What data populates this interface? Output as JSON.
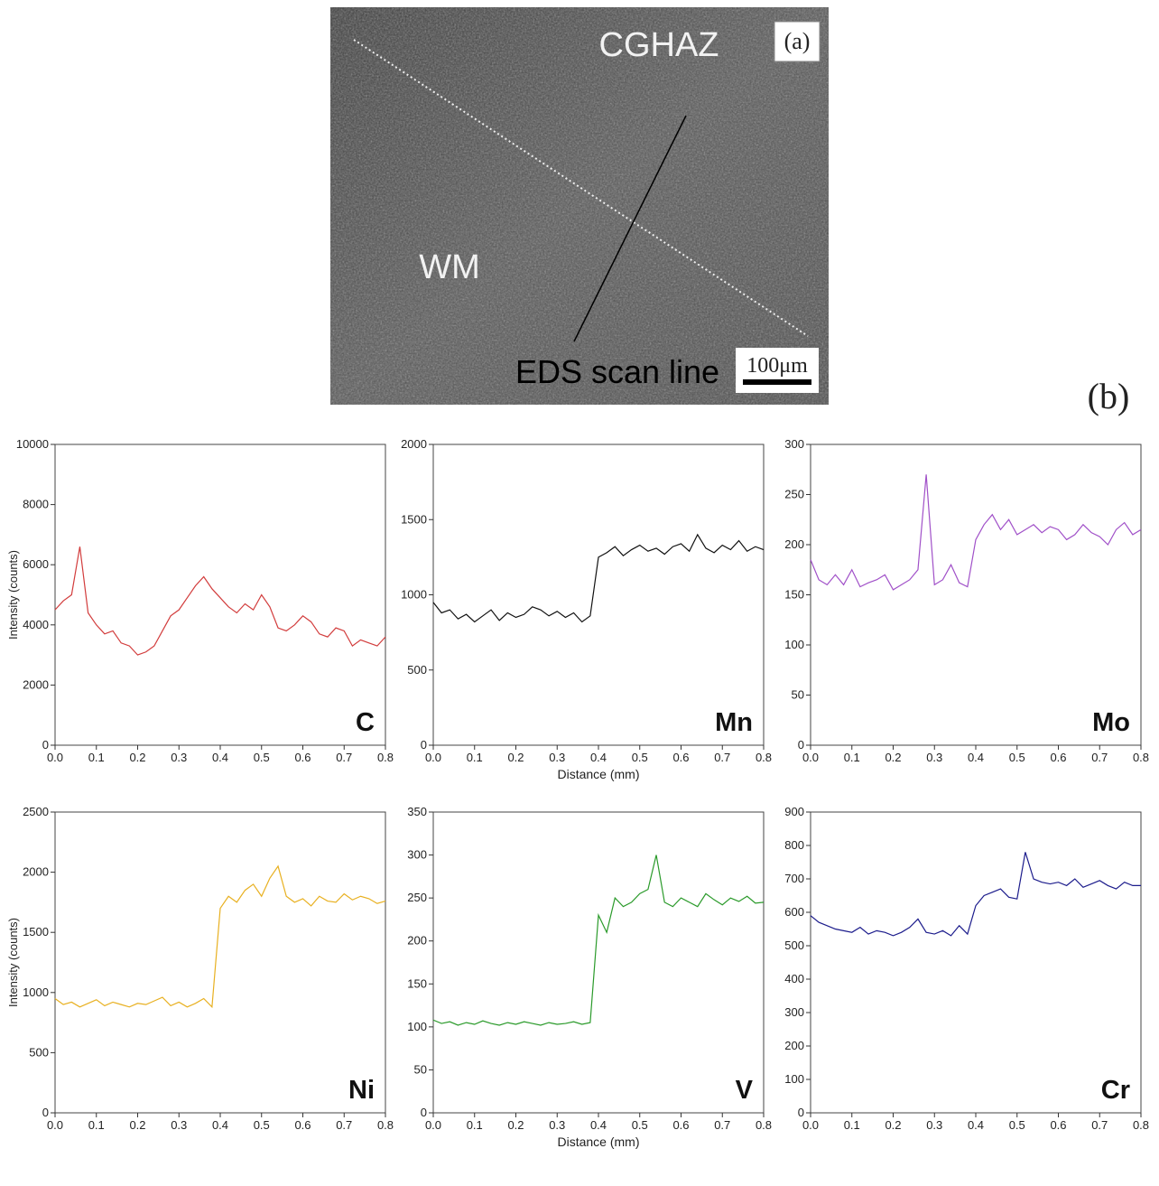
{
  "micrograph": {
    "panel_label": "(a)",
    "region_top": "CGHAZ",
    "region_left": "WM",
    "scan_label": "EDS scan line",
    "scale_bar": "100μm"
  },
  "panel_label_b": "(b)",
  "chart_data": [
    {
      "type": "line",
      "annotation": "C",
      "y_label": "Intensity (counts)",
      "x": [
        0,
        0.02,
        0.04,
        0.06,
        0.08,
        0.1,
        0.12,
        0.14,
        0.16,
        0.18,
        0.2,
        0.22,
        0.24,
        0.26,
        0.28,
        0.3,
        0.32,
        0.34,
        0.36,
        0.38,
        0.4,
        0.42,
        0.44,
        0.46,
        0.48,
        0.5,
        0.52,
        0.54,
        0.56,
        0.58,
        0.6,
        0.62,
        0.64,
        0.66,
        0.68,
        0.7,
        0.72,
        0.74,
        0.76,
        0.78,
        0.8
      ],
      "series": [
        {
          "color": "#d23c3c",
          "values": [
            4500,
            4800,
            5000,
            6600,
            4400,
            4000,
            3700,
            3800,
            3400,
            3300,
            3000,
            3100,
            3300,
            3800,
            4300,
            4500,
            4900,
            5300,
            5600,
            5200,
            4900,
            4600,
            4400,
            4700,
            4500,
            5000,
            4600,
            3900,
            3800,
            4000,
            4300,
            4100,
            3700,
            3600,
            3900,
            3800,
            3300,
            3500,
            3400,
            3300,
            3600
          ]
        }
      ],
      "xlim": [
        0,
        0.8
      ],
      "xticks": [
        {
          "value": 0,
          "label": "0.0"
        },
        0.1,
        0.2,
        0.3,
        0.4,
        0.5,
        0.6,
        0.7,
        0.8
      ],
      "ylim": [
        0,
        10000
      ],
      "yticks": [
        0,
        2000,
        4000,
        6000,
        8000,
        10000
      ]
    },
    {
      "type": "line",
      "annotation": "Mn",
      "x_label": "Distance (mm)",
      "x": [
        0,
        0.02,
        0.04,
        0.06,
        0.08,
        0.1,
        0.12,
        0.14,
        0.16,
        0.18,
        0.2,
        0.22,
        0.24,
        0.26,
        0.28,
        0.3,
        0.32,
        0.34,
        0.36,
        0.38,
        0.4,
        0.42,
        0.44,
        0.46,
        0.48,
        0.5,
        0.52,
        0.54,
        0.56,
        0.58,
        0.6,
        0.62,
        0.64,
        0.66,
        0.68,
        0.7,
        0.72,
        0.74,
        0.76,
        0.78,
        0.8
      ],
      "series": [
        {
          "color": "#111111",
          "values": [
            950,
            880,
            900,
            840,
            870,
            820,
            860,
            900,
            830,
            880,
            850,
            870,
            920,
            900,
            860,
            890,
            850,
            880,
            820,
            860,
            1250,
            1280,
            1320,
            1260,
            1300,
            1330,
            1290,
            1310,
            1270,
            1320,
            1340,
            1290,
            1400,
            1310,
            1280,
            1330,
            1300,
            1360,
            1290,
            1320,
            1300
          ]
        }
      ],
      "xlim": [
        0,
        0.8
      ],
      "xticks": [
        {
          "value": 0,
          "label": "0.0"
        },
        0.1,
        0.2,
        0.3,
        0.4,
        0.5,
        0.6,
        0.7,
        0.8
      ],
      "ylim": [
        0,
        2000
      ],
      "yticks": [
        0,
        500,
        1000,
        1500,
        2000
      ]
    },
    {
      "type": "line",
      "annotation": "Mo",
      "x": [
        0,
        0.02,
        0.04,
        0.06,
        0.08,
        0.1,
        0.12,
        0.14,
        0.16,
        0.18,
        0.2,
        0.22,
        0.24,
        0.26,
        0.28,
        0.3,
        0.32,
        0.34,
        0.36,
        0.38,
        0.4,
        0.42,
        0.44,
        0.46,
        0.48,
        0.5,
        0.52,
        0.54,
        0.56,
        0.58,
        0.6,
        0.62,
        0.64,
        0.66,
        0.68,
        0.7,
        0.72,
        0.74,
        0.76,
        0.78,
        0.8
      ],
      "series": [
        {
          "color": "#a050c8",
          "values": [
            185,
            165,
            160,
            170,
            160,
            175,
            158,
            162,
            165,
            170,
            155,
            160,
            165,
            175,
            270,
            160,
            165,
            180,
            162,
            158,
            205,
            220,
            230,
            215,
            225,
            210,
            215,
            220,
            212,
            218,
            215,
            205,
            210,
            220,
            212,
            208,
            200,
            215,
            222,
            210,
            215
          ]
        }
      ],
      "xlim": [
        0,
        0.8
      ],
      "xticks": [
        {
          "value": 0,
          "label": "0.0"
        },
        0.1,
        0.2,
        0.3,
        0.4,
        0.5,
        0.6,
        0.7,
        0.8
      ],
      "ylim": [
        0,
        300
      ],
      "yticks": [
        0,
        50,
        100,
        150,
        200,
        250,
        300
      ]
    },
    {
      "type": "line",
      "annotation": "Ni",
      "y_label": "Intensity (counts)",
      "x": [
        0,
        0.02,
        0.04,
        0.06,
        0.08,
        0.1,
        0.12,
        0.14,
        0.16,
        0.18,
        0.2,
        0.22,
        0.24,
        0.26,
        0.28,
        0.3,
        0.32,
        0.34,
        0.36,
        0.38,
        0.4,
        0.42,
        0.44,
        0.46,
        0.48,
        0.5,
        0.52,
        0.54,
        0.56,
        0.58,
        0.6,
        0.62,
        0.64,
        0.66,
        0.68,
        0.7,
        0.72,
        0.74,
        0.76,
        0.78,
        0.8
      ],
      "series": [
        {
          "color": "#e8b020",
          "values": [
            950,
            900,
            920,
            880,
            910,
            940,
            890,
            920,
            900,
            880,
            910,
            900,
            930,
            960,
            890,
            920,
            880,
            910,
            950,
            880,
            1700,
            1800,
            1750,
            1850,
            1900,
            1800,
            1950,
            2050,
            1800,
            1750,
            1780,
            1720,
            1800,
            1760,
            1750,
            1820,
            1770,
            1800,
            1780,
            1740,
            1760
          ]
        }
      ],
      "xlim": [
        0,
        0.8
      ],
      "xticks": [
        {
          "value": 0,
          "label": "0.0"
        },
        0.1,
        0.2,
        0.3,
        0.4,
        0.5,
        0.6,
        0.7,
        0.8
      ],
      "ylim": [
        0,
        2500
      ],
      "yticks": [
        0,
        500,
        1000,
        1500,
        2000,
        2500
      ]
    },
    {
      "type": "line",
      "annotation": "V",
      "x_label": "Distance (mm)",
      "x": [
        0,
        0.02,
        0.04,
        0.06,
        0.08,
        0.1,
        0.12,
        0.14,
        0.16,
        0.18,
        0.2,
        0.22,
        0.24,
        0.26,
        0.28,
        0.3,
        0.32,
        0.34,
        0.36,
        0.38,
        0.4,
        0.42,
        0.44,
        0.46,
        0.48,
        0.5,
        0.52,
        0.54,
        0.56,
        0.58,
        0.6,
        0.62,
        0.64,
        0.66,
        0.68,
        0.7,
        0.72,
        0.74,
        0.76,
        0.78,
        0.8
      ],
      "series": [
        {
          "color": "#2a9a2a",
          "values": [
            108,
            104,
            106,
            102,
            105,
            103,
            107,
            104,
            102,
            105,
            103,
            106,
            104,
            102,
            105,
            103,
            104,
            106,
            103,
            105,
            230,
            210,
            250,
            240,
            245,
            255,
            260,
            300,
            245,
            240,
            250,
            245,
            240,
            255,
            248,
            242,
            250,
            246,
            252,
            244,
            245
          ]
        }
      ],
      "xlim": [
        0,
        0.8
      ],
      "xticks": [
        {
          "value": 0,
          "label": "0.0"
        },
        0.1,
        0.2,
        0.3,
        0.4,
        0.5,
        0.6,
        0.7,
        0.8
      ],
      "ylim": [
        0,
        350
      ],
      "yticks": [
        0,
        50,
        100,
        150,
        200,
        250,
        300,
        350
      ]
    },
    {
      "type": "line",
      "annotation": "Cr",
      "x": [
        0,
        0.02,
        0.04,
        0.06,
        0.08,
        0.1,
        0.12,
        0.14,
        0.16,
        0.18,
        0.2,
        0.22,
        0.24,
        0.26,
        0.28,
        0.3,
        0.32,
        0.34,
        0.36,
        0.38,
        0.4,
        0.42,
        0.44,
        0.46,
        0.48,
        0.5,
        0.52,
        0.54,
        0.56,
        0.58,
        0.6,
        0.62,
        0.64,
        0.66,
        0.68,
        0.7,
        0.72,
        0.74,
        0.76,
        0.78,
        0.8
      ],
      "series": [
        {
          "color": "#1c1c8c",
          "values": [
            590,
            570,
            560,
            550,
            545,
            540,
            555,
            535,
            545,
            540,
            530,
            540,
            555,
            580,
            540,
            535,
            545,
            530,
            560,
            535,
            620,
            650,
            660,
            670,
            645,
            640,
            780,
            700,
            690,
            685,
            690,
            680,
            700,
            675,
            685,
            695,
            680,
            670,
            690,
            680,
            680
          ]
        }
      ],
      "xlim": [
        0,
        0.8
      ],
      "xticks": [
        {
          "value": 0,
          "label": "0.0"
        },
        0.1,
        0.2,
        0.3,
        0.4,
        0.5,
        0.6,
        0.7,
        0.8
      ],
      "ylim": [
        0,
        900
      ],
      "yticks": [
        0,
        100,
        200,
        300,
        400,
        500,
        600,
        700,
        800,
        900
      ]
    }
  ]
}
